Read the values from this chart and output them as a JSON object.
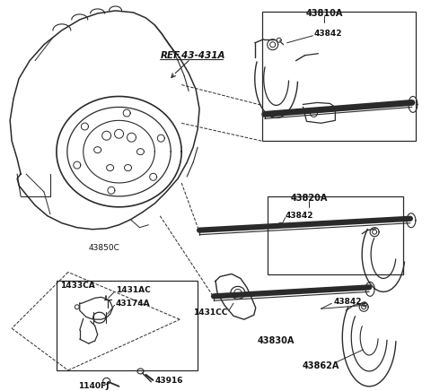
{
  "bg_color": "#ffffff",
  "line_color": "#2a2a2a",
  "labels": {
    "ref": "REF.43-431A",
    "43810A": "43810A",
    "43842_1": "43842",
    "43820A": "43820A",
    "43842_2": "43842",
    "43850C": "43850C",
    "1433CA": "1433CA",
    "1431AC": "1431AC",
    "43174A": "43174A",
    "43916": "43916",
    "1140FJ": "1140FJ",
    "1431CC": "1431CC",
    "43830A": "43830A",
    "43842_3": "43842",
    "43862A": "43862A"
  },
  "figsize": [
    4.8,
    4.36
  ],
  "dpi": 100
}
